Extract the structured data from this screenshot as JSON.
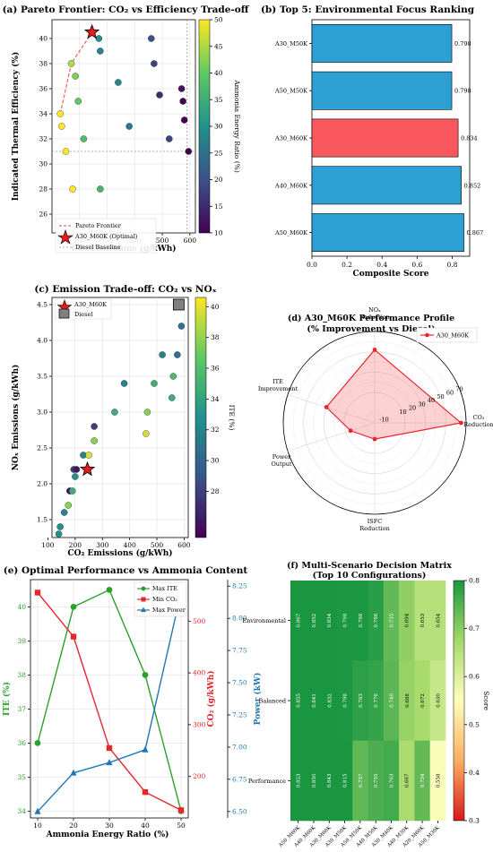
{
  "chart_data": [
    {
      "type": "scatter",
      "title": "(a) Pareto Frontier: CO₂ vs Efficiency Trade-off",
      "xlabel": "CO₂ Emissions (g/kWh)",
      "ylabel": "Indicated Thermal Efficiency (%)",
      "colorbar_label": "Ammonia Energy Ratio (%)",
      "xlim": [
        100,
        620
      ],
      "ylim": [
        24.5,
        41.5
      ],
      "x_ticks": [
        200,
        300,
        400,
        500,
        600
      ],
      "y_ticks": [
        26,
        28,
        30,
        32,
        34,
        36,
        38,
        40
      ],
      "cbar_ticks": [
        10,
        15,
        20,
        25,
        30,
        35,
        40,
        45,
        50
      ],
      "points": [
        {
          "x": 130,
          "y": 34,
          "c": 50
        },
        {
          "x": 135,
          "y": 33,
          "c": 50
        },
        {
          "x": 150,
          "y": 31,
          "c": 50
        },
        {
          "x": 175,
          "y": 28,
          "c": 50
        },
        {
          "x": 170,
          "y": 38,
          "c": 45
        },
        {
          "x": 185,
          "y": 37,
          "c": 42
        },
        {
          "x": 195,
          "y": 35,
          "c": 40
        },
        {
          "x": 215,
          "y": 32,
          "c": 38
        },
        {
          "x": 275,
          "y": 28,
          "c": 36
        },
        {
          "x": 270,
          "y": 40,
          "c": 30
        },
        {
          "x": 275,
          "y": 39,
          "c": 28
        },
        {
          "x": 340,
          "y": 36.5,
          "c": 28
        },
        {
          "x": 380,
          "y": 33,
          "c": 26
        },
        {
          "x": 460,
          "y": 40,
          "c": 20
        },
        {
          "x": 470,
          "y": 38,
          "c": 18
        },
        {
          "x": 490,
          "y": 35.5,
          "c": 15
        },
        {
          "x": 525,
          "y": 32,
          "c": 18
        },
        {
          "x": 570,
          "y": 36,
          "c": 12
        },
        {
          "x": 575,
          "y": 35,
          "c": 10
        },
        {
          "x": 580,
          "y": 33.5,
          "c": 10
        },
        {
          "x": 595,
          "y": 31,
          "c": 10
        }
      ],
      "pareto_frontier": [
        {
          "x": 130,
          "y": 34
        },
        {
          "x": 140,
          "y": 35
        },
        {
          "x": 155,
          "y": 36.5
        },
        {
          "x": 170,
          "y": 38
        },
        {
          "x": 200,
          "y": 39
        },
        {
          "x": 245,
          "y": 40.5
        }
      ],
      "optimal": {
        "x": 245,
        "y": 40.5,
        "label": "A30_M60K (Optimal)"
      },
      "diesel_baseline": {
        "x": 590,
        "y": 31,
        "label": "Diesel Baseline"
      },
      "legend": [
        "Pareto Frontier",
        "A30_M60K (Optimal)",
        "Diesel Baseline"
      ]
    },
    {
      "type": "bar",
      "orientation": "horizontal",
      "title": "(b) Top 5: Environmental Focus Ranking",
      "xlabel": "Composite Score",
      "xlim": [
        0,
        0.9
      ],
      "x_ticks": [
        "0.0",
        "0.2",
        "0.4",
        "0.6",
        "0.8"
      ],
      "categories": [
        "A30_M50K",
        "A50_M50K",
        "A30_M60K",
        "A40_M60K",
        "A50_M60K"
      ],
      "values": [
        0.798,
        0.798,
        0.834,
        0.852,
        0.867
      ],
      "value_labels": [
        "0.798",
        "0.798",
        "0.834",
        "0.852",
        "0.867"
      ],
      "highlight": "A30_M60K",
      "colors": {
        "bar": "#2e9fd3",
        "highlight": "#f9575e"
      }
    },
    {
      "type": "scatter",
      "title": "(c) Emission Trade-off: CO₂ vs NOₓ",
      "xlabel": "CO₂ Emissions (g/kWh)",
      "ylabel": "NOₓ Emissions (g/kWh)",
      "colorbar_label": "ITE (%)",
      "xlim": [
        115,
        615
      ],
      "ylim": [
        1.25,
        4.6
      ],
      "x_ticks": [
        100,
        200,
        300,
        400,
        500,
        600
      ],
      "y_ticks": [
        1.5,
        2.0,
        2.5,
        3.0,
        3.5,
        4.0,
        4.5
      ],
      "cbar_ticks": [
        28,
        30,
        32,
        34,
        36,
        38,
        40
      ],
      "points": [
        {
          "x": 140,
          "y": 1.3,
          "c": 33
        },
        {
          "x": 145,
          "y": 1.4,
          "c": 33
        },
        {
          "x": 160,
          "y": 1.6,
          "c": 32
        },
        {
          "x": 175,
          "y": 1.7,
          "c": 38
        },
        {
          "x": 180,
          "y": 1.9,
          "c": 26
        },
        {
          "x": 190,
          "y": 1.9,
          "c": 35
        },
        {
          "x": 200,
          "y": 2.1,
          "c": 33
        },
        {
          "x": 195,
          "y": 2.2,
          "c": 28
        },
        {
          "x": 205,
          "y": 2.2,
          "c": 26
        },
        {
          "x": 230,
          "y": 2.4,
          "c": 32
        },
        {
          "x": 250,
          "y": 2.4,
          "c": 40
        },
        {
          "x": 270,
          "y": 2.6,
          "c": 38
        },
        {
          "x": 270,
          "y": 2.8,
          "c": 28
        },
        {
          "x": 345,
          "y": 3.0,
          "c": 35
        },
        {
          "x": 380,
          "y": 3.4,
          "c": 32
        },
        {
          "x": 460,
          "y": 2.7,
          "c": 40
        },
        {
          "x": 465,
          "y": 3.0,
          "c": 38
        },
        {
          "x": 490,
          "y": 3.4,
          "c": 35
        },
        {
          "x": 520,
          "y": 3.8,
          "c": 32
        },
        {
          "x": 555,
          "y": 3.2,
          "c": 35
        },
        {
          "x": 560,
          "y": 3.5,
          "c": 36
        },
        {
          "x": 575,
          "y": 3.8,
          "c": 31
        },
        {
          "x": 590,
          "y": 4.2,
          "c": 31
        }
      ],
      "highlight": {
        "x": 245,
        "y": 2.2,
        "label": "A30_M60K"
      },
      "diesel": {
        "x": 580,
        "y": 4.5,
        "label": "Diesel"
      },
      "legend": [
        "A30_M60K",
        "Diesel"
      ]
    },
    {
      "type": "radar",
      "title": "(d) A30_M60K Performance Profile",
      "subtitle": "(% Improvement vs Diesel)",
      "axes": [
        "NOₓ Reduction",
        "CO₂ Reduction",
        "ISFC Reduction",
        "Power Output",
        "ITE Improvement"
      ],
      "values": [
        52,
        65,
        -4,
        5,
        30
      ],
      "rlim": [
        -20,
        70
      ],
      "r_ticks": [
        -10,
        10,
        20,
        30,
        40,
        50,
        60,
        70
      ],
      "series_name": "A30_M60K"
    },
    {
      "type": "line",
      "title": "(e) Optimal Performance vs Ammonia Content",
      "xlabel": "Ammonia Energy Ratio (%)",
      "x": [
        10,
        20,
        30,
        40,
        50
      ],
      "x_ticks": [
        10,
        20,
        30,
        40,
        50
      ],
      "axes": {
        "ITE (%)": {
          "ylim": [
            33.8,
            40.8
          ],
          "ticks": [
            34,
            35,
            36,
            37,
            38,
            39,
            40
          ]
        },
        "CO₂ (g/kWh)": {
          "ylim": [
            120,
            580
          ],
          "ticks": [
            200,
            300,
            400,
            500
          ]
        },
        "Power (kW)": {
          "ylim": [
            6.45,
            8.3
          ],
          "ticks": [
            "6.50",
            "6.75",
            "7.00",
            "7.25",
            "7.50",
            "7.75",
            "8.00",
            "8.25"
          ]
        }
      },
      "series": [
        {
          "name": "Max ITE",
          "axis": "ITE (%)",
          "values": [
            36,
            40,
            40.5,
            38,
            34
          ]
        },
        {
          "name": "Min CO₂",
          "axis": "CO₂ (g/kWh)",
          "values": [
            555,
            470,
            255,
            170,
            135
          ]
        },
        {
          "name": "Max Power",
          "axis": "Power (kW)",
          "values": [
            6.5,
            6.8,
            6.88,
            6.98,
            8.2
          ]
        }
      ],
      "colors": {
        "ite": "#2ca02c",
        "co2": "#e8242d",
        "power": "#1f77b4"
      }
    },
    {
      "type": "heatmap",
      "title": "(f) Multi-Scenario Decision Matrix",
      "subtitle": "(Top 10 Configurations)",
      "rows": [
        "Environmental",
        "Balanced",
        "Performance"
      ],
      "columns": [
        "A50_M60K",
        "A40_M60K",
        "A30_M60K",
        "A30_M50K",
        "A50_M50K",
        "A40_M50K",
        "A30_M40K",
        "A40_M30K",
        "A20_M60K",
        "A50_M30K"
      ],
      "values": [
        [
          0.867,
          0.852,
          0.834,
          0.798,
          0.798,
          0.786,
          0.735,
          0.694,
          0.653,
          0.654
        ],
        [
          0.855,
          0.841,
          0.832,
          0.798,
          0.783,
          0.776,
          0.74,
          0.688,
          0.672,
          0.63
        ],
        [
          0.823,
          0.85,
          0.843,
          0.815,
          0.737,
          0.755,
          0.763,
          0.667,
          0.734,
          0.558
        ]
      ],
      "colorbar_label": "Score",
      "clim": [
        0.3,
        0.8
      ],
      "cbar_ticks": [
        "0.3",
        "0.4",
        "0.5",
        "0.6",
        "0.7",
        "0.8"
      ]
    }
  ]
}
